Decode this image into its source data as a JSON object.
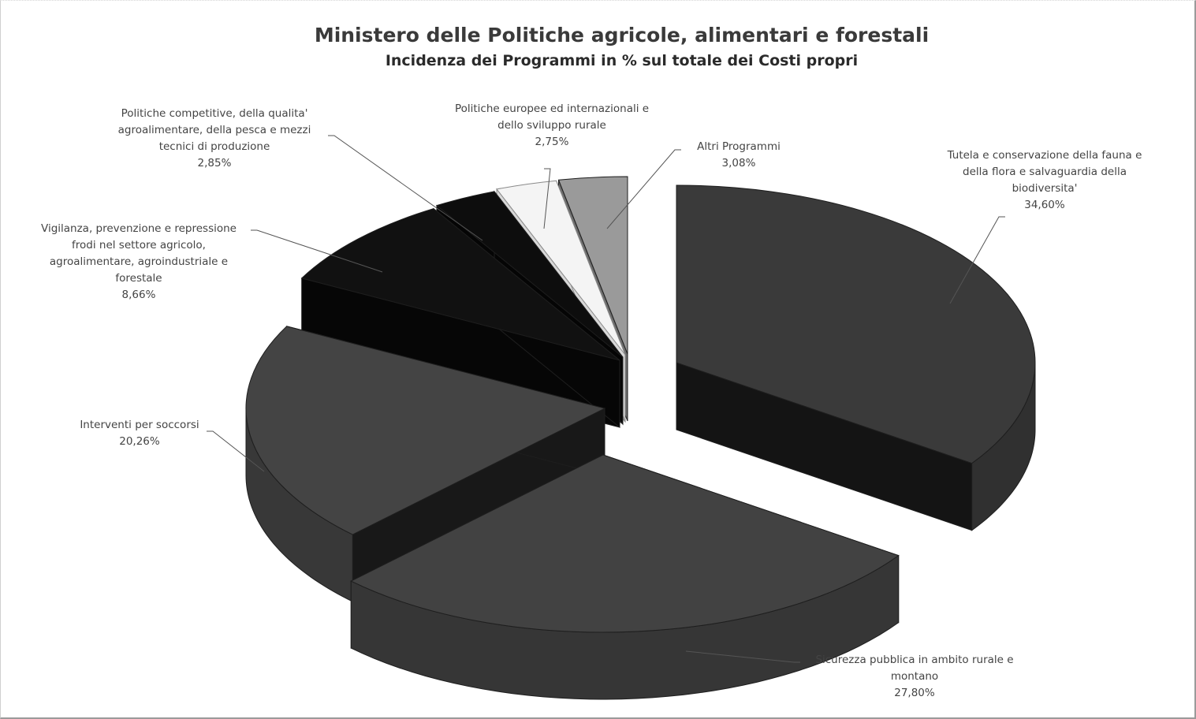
{
  "chart_data": {
    "type": "pie",
    "title": "Ministero delle Politiche agricole, alimentari e forestali",
    "subtitle": "Incidenza dei Programmi in % sul totale dei Costi propri",
    "slices": [
      {
        "label": "Tutela e conservazione della fauna e della flora e salvaguardia della biodiversita'",
        "value": 34.6,
        "display": "34,60%",
        "color": "#3a3a3a"
      },
      {
        "label": "Sicurezza pubblica in ambito rurale e montano",
        "value": 27.8,
        "display": "27,80%",
        "color": "#424242"
      },
      {
        "label": "Interventi per soccorsi",
        "value": 20.26,
        "display": "20,26%",
        "color": "#444444"
      },
      {
        "label": "Vigilanza, prevenzione e repressione frodi nel settore agricolo, agroalimentare, agroindustriale e forestale",
        "value": 8.66,
        "display": "8,66%",
        "color": "#111111"
      },
      {
        "label": "Politiche competitive, della qualita' agroalimentare, della pesca e mezzi tecnici di produzione",
        "value": 2.85,
        "display": "2,85%",
        "color": "#0d0d0d"
      },
      {
        "label": "Politiche europee ed internazionali e dello sviluppo rurale",
        "value": 2.75,
        "display": "2,75%",
        "color": "#f4f4f4"
      },
      {
        "label": "Altri Programmi",
        "value": 3.08,
        "display": "3,08%",
        "color": "#9a9a9a"
      }
    ],
    "label_lines": [
      [
        "Tutela e conservazione della fauna e",
        "della flora e salvaguardia della",
        "biodiversita'",
        "34,60%"
      ],
      [
        "Sicurezza pubblica in ambito rurale e",
        "montano",
        "27,80%"
      ],
      [
        "Interventi per soccorsi",
        "20,26%"
      ],
      [
        "Vigilanza, prevenzione e repressione",
        "frodi nel settore agricolo,",
        "agroalimentare, agroindustriale e",
        "forestale",
        "8,66%"
      ],
      [
        "Politiche competitive, della qualita'",
        "agroalimentare, della pesca e mezzi",
        "tecnici di produzione",
        "2,85%"
      ],
      [
        "Politiche europee ed internazionali e",
        "dello sviluppo rurale",
        "2,75%"
      ],
      [
        "Altri Programmi",
        "3,08%"
      ]
    ],
    "legend": "none",
    "style": "3d-exploded"
  }
}
